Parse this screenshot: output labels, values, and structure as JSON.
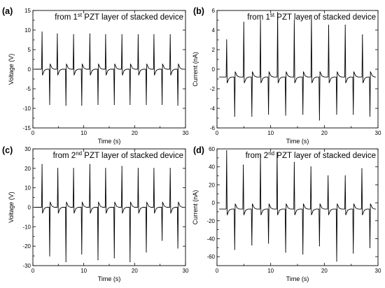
{
  "chart_data": [
    {
      "panel": "(a)",
      "type": "line",
      "annotation": {
        "prefix": "from 1",
        "sup": "st",
        "suffix": " PZT layer of stacked device"
      },
      "xlabel": "Time (s)",
      "ylabel": "Voltage (V)",
      "xlim": [
        0,
        30
      ],
      "ylim": [
        -15,
        15
      ],
      "xticks": [
        0,
        10,
        20,
        30
      ],
      "yticks": [
        -15,
        -10,
        -5,
        0,
        5,
        10,
        15
      ],
      "baseline": 0,
      "positive_peaks": {
        "x": [
          1.8,
          4.8,
          8.0,
          11.2,
          14.3,
          17.5,
          20.7,
          23.8,
          27.0
        ],
        "y": [
          9.5,
          9.0,
          8.8,
          9.0,
          8.8,
          8.8,
          8.8,
          8.8,
          8.8
        ]
      },
      "negative_peaks": {
        "x": [
          3.3,
          6.5,
          9.6,
          12.8,
          16.0,
          19.1,
          22.3,
          25.4,
          28.5
        ],
        "y": [
          -9.0,
          -9.2,
          -9.2,
          -9.0,
          -9.0,
          -9.0,
          -9.0,
          -9.0,
          -9.2
        ]
      }
    },
    {
      "panel": "(b)",
      "type": "line",
      "annotation": {
        "prefix": "from 1",
        "sup": "st",
        "suffix": " PZT layer of stacked device"
      },
      "xlabel": "Time (s)",
      "ylabel": "Current (nA)",
      "xlim": [
        0,
        30
      ],
      "ylim": [
        -6,
        6
      ],
      "xticks": [
        0,
        10,
        20,
        30
      ],
      "yticks": [
        -6,
        -4,
        -2,
        0,
        2,
        4,
        6
      ],
      "baseline": -0.8,
      "positive_peaks": {
        "x": [
          1.8,
          5.0,
          8.1,
          11.3,
          14.4,
          17.6,
          20.8,
          23.9,
          27.1
        ],
        "y": [
          3.0,
          4.8,
          5.0,
          5.8,
          5.0,
          5.5,
          4.5,
          4.5,
          3.5
        ]
      },
      "negative_peaks": {
        "x": [
          3.3,
          6.5,
          9.6,
          12.8,
          16.0,
          19.1,
          22.3,
          25.4,
          28.5
        ],
        "y": [
          -4.8,
          -4.8,
          -4.6,
          -4.7,
          -4.6,
          -5.2,
          -4.6,
          -4.6,
          -4.8
        ]
      }
    },
    {
      "panel": "(c)",
      "type": "line",
      "annotation": {
        "prefix": "from 2",
        "sup": "nd",
        "suffix": " PZT layer of stacked device"
      },
      "xlabel": "Time (s)",
      "ylabel": "Voltage (V)",
      "xlim": [
        0,
        30
      ],
      "ylim": [
        -30,
        30
      ],
      "xticks": [
        0,
        10,
        20,
        30
      ],
      "yticks": [
        -30,
        -20,
        -10,
        0,
        10,
        20,
        30
      ],
      "baseline": 0,
      "positive_peaks": {
        "x": [
          1.8,
          4.9,
          8.0,
          11.2,
          14.3,
          17.5,
          20.7,
          23.8,
          27.0
        ],
        "y": [
          22,
          20,
          20,
          22,
          20,
          21,
          20,
          20,
          20
        ]
      },
      "negative_peaks": {
        "x": [
          3.3,
          6.5,
          9.6,
          12.8,
          16.0,
          19.1,
          22.3,
          25.4,
          28.5
        ],
        "y": [
          -25,
          -28,
          -24,
          -27,
          -26,
          -28,
          -23,
          -17,
          -21
        ]
      }
    },
    {
      "panel": "(d)",
      "type": "line",
      "annotation": {
        "prefix": "from 2",
        "sup": "nd",
        "suffix": " PZT layer of stacked device"
      },
      "xlabel": "Time (s)",
      "ylabel": "Current (nA)",
      "xlim": [
        0,
        30
      ],
      "ylim": [
        -70,
        60
      ],
      "xticks": [
        0,
        10,
        20,
        30
      ],
      "yticks": [
        -60,
        -40,
        -20,
        0,
        20,
        40,
        60
      ],
      "baseline": -7,
      "positive_peaks": {
        "x": [
          1.8,
          4.9,
          8.1,
          11.2,
          14.4,
          17.5,
          20.7,
          23.9,
          27.0
        ],
        "y": [
          58,
          42,
          53,
          56,
          45,
          40,
          30,
          30,
          38
        ]
      },
      "negative_peaks": {
        "x": [
          3.3,
          6.5,
          9.6,
          12.8,
          16.0,
          19.1,
          22.3,
          25.4,
          28.5
        ],
        "y": [
          -52,
          -47,
          -45,
          -55,
          -57,
          -48,
          -65,
          -56,
          -50
        ]
      }
    }
  ]
}
